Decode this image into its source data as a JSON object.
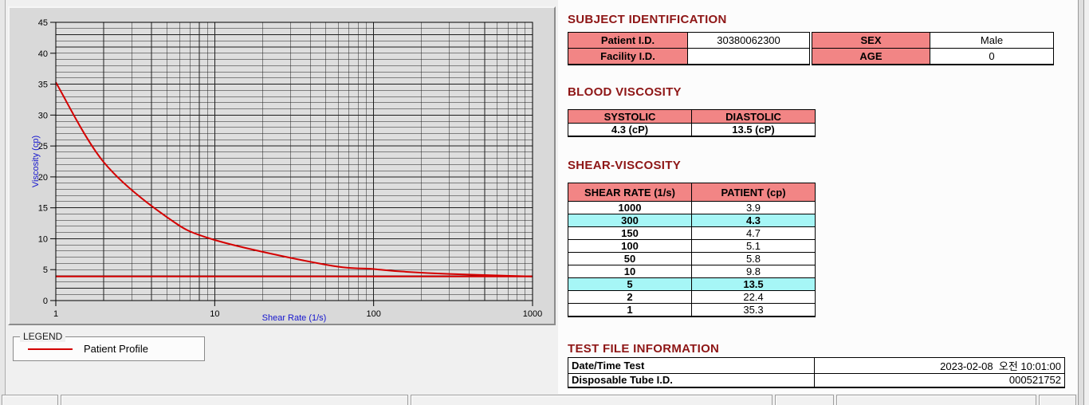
{
  "colors": {
    "heading": "#8E1616",
    "table_header_bg": "#F28585",
    "highlight_bg": "#A6F6F6",
    "axis_label": "#1515CE",
    "curve": "#D40000",
    "page_bg": "#F0F0F0",
    "panel_bg": "#FCFCFC"
  },
  "chart_data": {
    "type": "line",
    "title": "",
    "xlabel": "Shear Rate (1/s)",
    "ylabel": "Viscosity (cp)",
    "x_scale": "log",
    "xlim": [
      1,
      1000
    ],
    "ylim": [
      0,
      45
    ],
    "x_ticks": [
      1,
      10,
      100,
      1000
    ],
    "y_ticks": [
      0,
      5,
      10,
      15,
      20,
      25,
      30,
      35,
      40,
      45
    ],
    "grid": true,
    "legend_position": "below-left",
    "series": [
      {
        "name": "Patient Profile",
        "color": "#D40000",
        "x": [
          1,
          2,
          5,
          10,
          50,
          100,
          150,
          300,
          1000
        ],
        "y": [
          35.3,
          22.4,
          13.5,
          9.8,
          5.8,
          5.1,
          4.7,
          4.3,
          3.9
        ]
      }
    ],
    "reference_line_y": 3.9
  },
  "legend": {
    "title": "LEGEND",
    "items": [
      {
        "label": "Patient Profile",
        "color": "#D40000"
      }
    ]
  },
  "subject_identification": {
    "title": "SUBJECT IDENTIFICATION",
    "rows_left": [
      {
        "label": "Patient I.D.",
        "value": "30380062300"
      },
      {
        "label": "Facility I.D.",
        "value": ""
      }
    ],
    "rows_right": [
      {
        "label": "SEX",
        "value": "Male"
      },
      {
        "label": "AGE",
        "value": "0"
      }
    ]
  },
  "blood_viscosity": {
    "title": "BLOOD VISCOSITY",
    "headers": [
      "SYSTOLIC",
      "DIASTOLIC"
    ],
    "values": [
      "4.3 (cP)",
      "13.5 (cP)"
    ]
  },
  "shear_viscosity": {
    "title": "SHEAR-VISCOSITY",
    "headers": [
      "SHEAR RATE (1/s)",
      "PATIENT (cp)"
    ],
    "rows": [
      {
        "rate": "1000",
        "value": "3.9",
        "highlight": false
      },
      {
        "rate": "300",
        "value": "4.3",
        "highlight": true
      },
      {
        "rate": "150",
        "value": "4.7",
        "highlight": false
      },
      {
        "rate": "100",
        "value": "5.1",
        "highlight": false
      },
      {
        "rate": "50",
        "value": "5.8",
        "highlight": false
      },
      {
        "rate": "10",
        "value": "9.8",
        "highlight": false
      },
      {
        "rate": "5",
        "value": "13.5",
        "highlight": true
      },
      {
        "rate": "2",
        "value": "22.4",
        "highlight": false
      },
      {
        "rate": "1",
        "value": "35.3",
        "highlight": false
      }
    ]
  },
  "test_file_information": {
    "title": "TEST FILE INFORMATION",
    "rows": [
      {
        "label": "Date/Time Test",
        "value": "2023-02-08  오전 10:01:00"
      },
      {
        "label": "Disposable Tube I.D.",
        "value": "000521752"
      }
    ]
  }
}
